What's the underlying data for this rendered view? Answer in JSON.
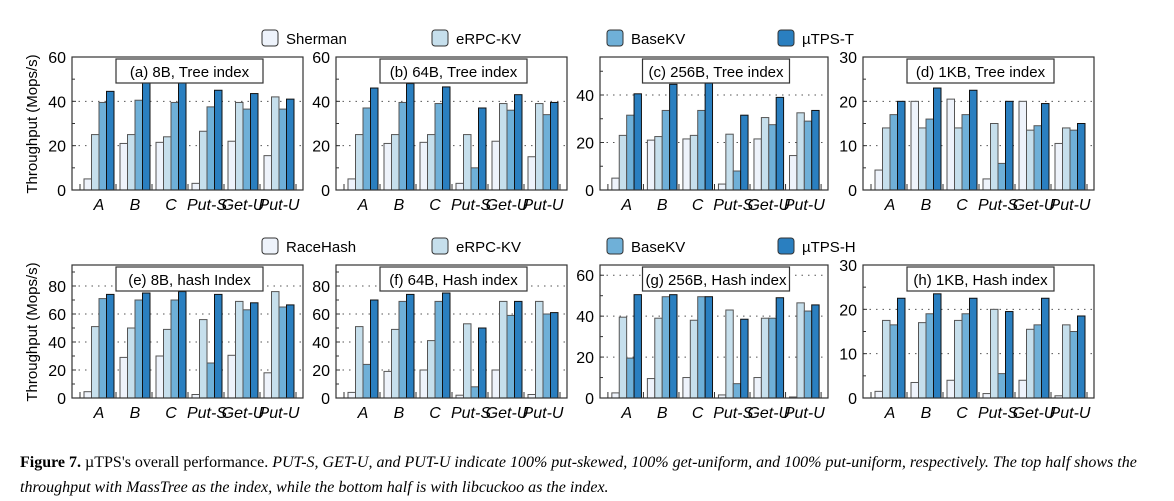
{
  "legends": {
    "top": [
      "Sherman",
      "eRPC-KV",
      "BaseKV",
      "µTPS-T"
    ],
    "bottom": [
      "RaceHash",
      "eRPC-KV",
      "BaseKV",
      "µTPS-H"
    ]
  },
  "colors": [
    "#eef3fb",
    "#c6dfec",
    "#6fb0d8",
    "#2a7fc0"
  ],
  "ylabel": "Throughput (Mops/s)",
  "caption": {
    "label": "Figure 7.",
    "title": " µTPS's overall performance. ",
    "body": "PUT-S, GET-U, and PUT-U indicate 100% put-skewed, 100% get-uniform, and 100% put-uniform, respectively. The top half shows the throughput with MassTree as the index, while the bottom half is with libcuckoo as the index."
  },
  "chart_data": [
    {
      "type": "bar",
      "title": "(a) 8B, Tree index",
      "categories": [
        "A",
        "B",
        "C",
        "Put-S",
        "Get-U",
        "Put-U"
      ],
      "ylim": [
        0,
        60
      ],
      "yticks": [
        0,
        20,
        40,
        60
      ],
      "legend": "top",
      "series": [
        {
          "name": "Sherman",
          "values": [
            5,
            21,
            21.5,
            3,
            22,
            15.5
          ]
        },
        {
          "name": "eRPC-KV",
          "values": [
            25,
            25,
            24,
            26.5,
            39.5,
            42
          ]
        },
        {
          "name": "BaseKV",
          "values": [
            39.5,
            40.5,
            39.5,
            37.5,
            36.5,
            36.5
          ]
        },
        {
          "name": "µTPS-T",
          "values": [
            44.5,
            49,
            49,
            45,
            43.5,
            41
          ]
        }
      ]
    },
    {
      "type": "bar",
      "title": "(b) 64B, Tree index",
      "categories": [
        "A",
        "B",
        "C",
        "Put-S",
        "Get-U",
        "Put-U"
      ],
      "ylim": [
        0,
        60
      ],
      "yticks": [
        0,
        20,
        40,
        60
      ],
      "legend": "top",
      "series": [
        {
          "name": "Sherman",
          "values": [
            5,
            21,
            21.5,
            3,
            22,
            15
          ]
        },
        {
          "name": "eRPC-KV",
          "values": [
            25,
            25,
            25,
            25,
            39,
            39
          ]
        },
        {
          "name": "BaseKV",
          "values": [
            37,
            39.5,
            39,
            10,
            36,
            34
          ]
        },
        {
          "name": "µTPS-T",
          "values": [
            46,
            48,
            46.5,
            37,
            43,
            39.5
          ]
        }
      ]
    },
    {
      "type": "bar",
      "title": "(c) 256B, Tree index",
      "categories": [
        "A",
        "B",
        "C",
        "Put-S",
        "Get-U",
        "Put-U"
      ],
      "ylim": [
        0,
        56
      ],
      "yticks": [
        0,
        20,
        40
      ],
      "legend": "top",
      "series": [
        {
          "name": "Sherman",
          "values": [
            5,
            21,
            21.5,
            2.5,
            21.5,
            14.5
          ]
        },
        {
          "name": "eRPC-KV",
          "values": [
            23,
            22.5,
            23,
            23.5,
            30.5,
            32.5
          ]
        },
        {
          "name": "BaseKV",
          "values": [
            31.5,
            33.5,
            33.5,
            8,
            27.5,
            29
          ]
        },
        {
          "name": "µTPS-T",
          "values": [
            40.5,
            44.5,
            45,
            31.5,
            39,
            33.5
          ]
        }
      ]
    },
    {
      "type": "bar",
      "title": "(d) 1KB, Tree index",
      "categories": [
        "A",
        "B",
        "C",
        "Put-S",
        "Get-U",
        "Put-U"
      ],
      "ylim": [
        0,
        30
      ],
      "yticks": [
        0,
        10,
        20,
        30
      ],
      "legend": "top",
      "series": [
        {
          "name": "Sherman",
          "values": [
            4.5,
            20,
            20.5,
            2.5,
            20,
            10.5
          ]
        },
        {
          "name": "eRPC-KV",
          "values": [
            14,
            14,
            14,
            15,
            13.5,
            14
          ]
        },
        {
          "name": "BaseKV",
          "values": [
            17,
            16,
            17,
            6,
            14.5,
            13.5
          ]
        },
        {
          "name": "µTPS-T",
          "values": [
            20,
            23,
            22.5,
            20,
            19.5,
            15
          ]
        }
      ]
    },
    {
      "type": "bar",
      "title": "(e) 8B, hash Index",
      "categories": [
        "A",
        "B",
        "C",
        "Put-S",
        "Get-U",
        "Put-U"
      ],
      "ylim": [
        0,
        95
      ],
      "yticks": [
        0,
        20,
        40,
        60,
        80
      ],
      "legend": "bottom",
      "series": [
        {
          "name": "RaceHash",
          "values": [
            4.5,
            29,
            30,
            2.5,
            30.5,
            18
          ]
        },
        {
          "name": "eRPC-KV",
          "values": [
            51,
            50,
            49,
            56,
            69,
            76
          ]
        },
        {
          "name": "BaseKV",
          "values": [
            71,
            70,
            70,
            25,
            63,
            65
          ]
        },
        {
          "name": "µTPS-H",
          "values": [
            74,
            75,
            76,
            74,
            68,
            66.5
          ]
        }
      ]
    },
    {
      "type": "bar",
      "title": "(f) 64B, Hash index",
      "categories": [
        "A",
        "B",
        "C",
        "Put-S",
        "Get-U",
        "Put-U"
      ],
      "ylim": [
        0,
        95
      ],
      "yticks": [
        0,
        20,
        40,
        60,
        80
      ],
      "legend": "bottom",
      "series": [
        {
          "name": "RaceHash",
          "values": [
            4,
            19,
            20,
            2,
            20,
            2.5
          ]
        },
        {
          "name": "eRPC-KV",
          "values": [
            51,
            49,
            41,
            53,
            69,
            69
          ]
        },
        {
          "name": "BaseKV",
          "values": [
            24,
            69,
            69,
            8,
            59,
            60
          ]
        },
        {
          "name": "µTPS-H",
          "values": [
            70,
            74,
            75,
            50,
            69,
            61
          ]
        }
      ]
    },
    {
      "type": "bar",
      "title": "(g) 256B, Hash index",
      "categories": [
        "A",
        "B",
        "C",
        "Put-S",
        "Get-U",
        "Put-U"
      ],
      "ylim": [
        0,
        65
      ],
      "yticks": [
        0,
        20,
        40,
        60
      ],
      "legend": "bottom",
      "series": [
        {
          "name": "RaceHash",
          "values": [
            2.5,
            9.5,
            10,
            1.5,
            10,
            0.5
          ]
        },
        {
          "name": "eRPC-KV",
          "values": [
            39.5,
            39,
            38,
            43,
            39,
            46.5
          ]
        },
        {
          "name": "BaseKV",
          "values": [
            19.5,
            49.5,
            49.5,
            7,
            39,
            42.5
          ]
        },
        {
          "name": "µTPS-H",
          "values": [
            50.5,
            50.5,
            49.5,
            38.5,
            49,
            45.5
          ]
        }
      ]
    },
    {
      "type": "bar",
      "title": "(h) 1KB, Hash index",
      "categories": [
        "A",
        "B",
        "C",
        "Put-S",
        "Get-U",
        "Put-U"
      ],
      "ylim": [
        0,
        30
      ],
      "yticks": [
        0,
        10,
        20,
        30
      ],
      "legend": "bottom",
      "series": [
        {
          "name": "RaceHash",
          "values": [
            1.5,
            3.5,
            4,
            1,
            4,
            0.5
          ]
        },
        {
          "name": "eRPC-KV",
          "values": [
            17.5,
            17,
            17.5,
            20,
            15.5,
            16.5
          ]
        },
        {
          "name": "BaseKV",
          "values": [
            16.5,
            19,
            19,
            5.5,
            16.5,
            15
          ]
        },
        {
          "name": "µTPS-H",
          "values": [
            22.5,
            23.5,
            22.5,
            19.5,
            22.5,
            18.5
          ]
        }
      ]
    }
  ]
}
